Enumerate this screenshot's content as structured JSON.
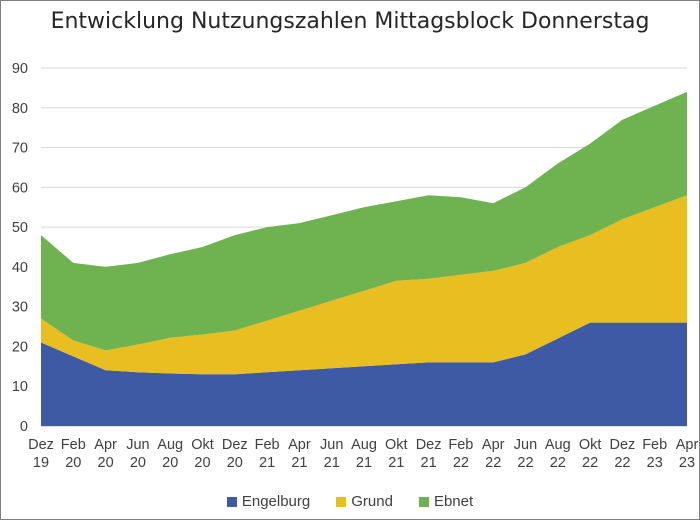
{
  "chart_data": {
    "type": "area",
    "stacked": true,
    "title": "Entwicklung Nutzungszahlen Mittagsblock Donnerstag",
    "xlabel": "",
    "ylabel": "",
    "ylim": [
      0,
      90
    ],
    "yticks": [
      0,
      10,
      20,
      30,
      40,
      50,
      60,
      70,
      80,
      90
    ],
    "grid": true,
    "legend_position": "bottom",
    "x": [
      [
        "Dez",
        "19"
      ],
      [
        "Feb",
        "20"
      ],
      [
        "Apr",
        "20"
      ],
      [
        "Jun",
        "20"
      ],
      [
        "Aug",
        "20"
      ],
      [
        "Okt",
        "20"
      ],
      [
        "Dez",
        "20"
      ],
      [
        "Feb",
        "21"
      ],
      [
        "Apr",
        "21"
      ],
      [
        "Jun",
        "21"
      ],
      [
        "Aug",
        "21"
      ],
      [
        "Okt",
        "21"
      ],
      [
        "Dez",
        "21"
      ],
      [
        "Feb",
        "22"
      ],
      [
        "Apr",
        "22"
      ],
      [
        "Jun",
        "22"
      ],
      [
        "Aug",
        "22"
      ],
      [
        "Okt",
        "22"
      ],
      [
        "Dez",
        "22"
      ],
      [
        "Feb",
        "23"
      ],
      [
        "Apr",
        "23"
      ]
    ],
    "series": [
      {
        "name": "Engelburg",
        "color": "#3e5aa5",
        "values": [
          21,
          17.5,
          14,
          13.5,
          13.2,
          13,
          13,
          13.5,
          14,
          14.5,
          15,
          15.5,
          16,
          16,
          16,
          18,
          22,
          26,
          26,
          26,
          26
        ]
      },
      {
        "name": "Grund",
        "color": "#e8be21",
        "values": [
          6,
          4,
          5,
          7,
          9,
          10,
          11,
          13,
          15,
          17,
          19,
          21,
          21,
          22,
          23,
          23,
          23,
          22,
          26,
          29,
          32
        ]
      },
      {
        "name": "Ebnet",
        "color": "#6fb250",
        "values": [
          21,
          19.5,
          21,
          20.5,
          21,
          22,
          24,
          23.5,
          22,
          21.5,
          21,
          20,
          21,
          19.5,
          17,
          19,
          21,
          23,
          25,
          25.5,
          26
        ]
      }
    ]
  }
}
